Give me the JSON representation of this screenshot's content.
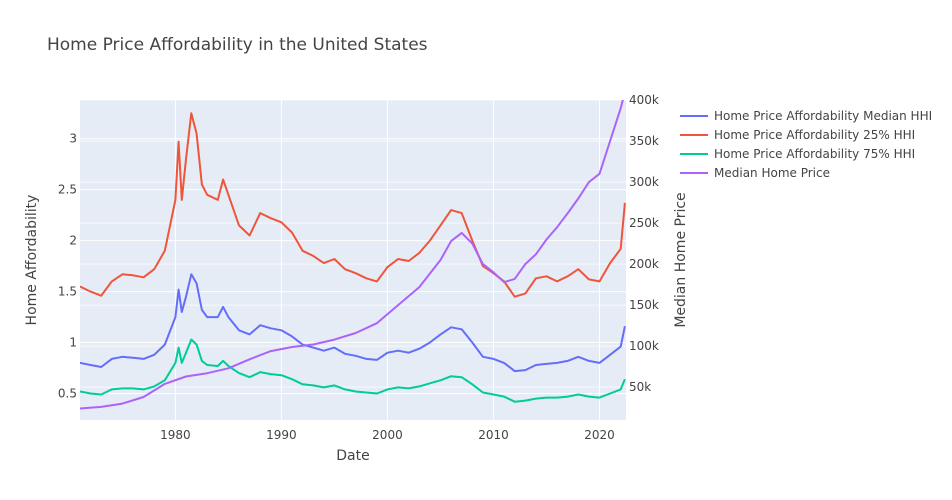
{
  "chart_data": {
    "type": "line",
    "title": "Home Price Affordability in the United States",
    "xlabel": "Date",
    "ylabel": "Home Affordability",
    "y2label": "Median Home Price",
    "xlim": [
      1971,
      2022.5
    ],
    "ylim": [
      0.24,
      3.38
    ],
    "y2lim": [
      10000,
      400000
    ],
    "x_ticks": [
      1980,
      1990,
      2000,
      2010,
      2020
    ],
    "y_ticks": [
      0.5,
      1,
      1.5,
      2,
      2.5,
      3
    ],
    "y_tick_labels": [
      "0.5",
      "1",
      "1.5",
      "2",
      "2.5",
      "3"
    ],
    "y2_ticks": [
      50000,
      100000,
      150000,
      200000,
      250000,
      300000,
      350000,
      400000
    ],
    "y2_tick_labels": [
      "50k",
      "100k",
      "150k",
      "200k",
      "250k",
      "300k",
      "350k",
      "400k"
    ],
    "grid": true,
    "legend_position": "top-right",
    "series": [
      {
        "name": "Home Price Affordability Median HHI",
        "color": "#636efa",
        "axis": "y",
        "points": [
          [
            1971,
            0.8
          ],
          [
            1972,
            0.78
          ],
          [
            1973,
            0.76
          ],
          [
            1974,
            0.84
          ],
          [
            1975,
            0.86
          ],
          [
            1976,
            0.85
          ],
          [
            1977,
            0.84
          ],
          [
            1978,
            0.88
          ],
          [
            1979,
            0.98
          ],
          [
            1980,
            1.25
          ],
          [
            1980.3,
            1.52
          ],
          [
            1980.6,
            1.3
          ],
          [
            1981,
            1.45
          ],
          [
            1981.5,
            1.67
          ],
          [
            1982,
            1.58
          ],
          [
            1982.5,
            1.32
          ],
          [
            1983,
            1.25
          ],
          [
            1984,
            1.25
          ],
          [
            1984.5,
            1.35
          ],
          [
            1985,
            1.25
          ],
          [
            1986,
            1.12
          ],
          [
            1987,
            1.08
          ],
          [
            1988,
            1.17
          ],
          [
            1989,
            1.14
          ],
          [
            1990,
            1.12
          ],
          [
            1991,
            1.06
          ],
          [
            1992,
            0.98
          ],
          [
            1993,
            0.95
          ],
          [
            1994,
            0.92
          ],
          [
            1995,
            0.95
          ],
          [
            1996,
            0.89
          ],
          [
            1997,
            0.87
          ],
          [
            1998,
            0.84
          ],
          [
            1999,
            0.83
          ],
          [
            2000,
            0.9
          ],
          [
            2001,
            0.92
          ],
          [
            2002,
            0.9
          ],
          [
            2003,
            0.94
          ],
          [
            2004,
            1.0
          ],
          [
            2005,
            1.08
          ],
          [
            2006,
            1.15
          ],
          [
            2007,
            1.13
          ],
          [
            2008,
            1.0
          ],
          [
            2009,
            0.86
          ],
          [
            2010,
            0.84
          ],
          [
            2011,
            0.8
          ],
          [
            2012,
            0.72
          ],
          [
            2013,
            0.73
          ],
          [
            2014,
            0.78
          ],
          [
            2015,
            0.79
          ],
          [
            2016,
            0.8
          ],
          [
            2017,
            0.82
          ],
          [
            2018,
            0.86
          ],
          [
            2019,
            0.82
          ],
          [
            2020,
            0.8
          ],
          [
            2021,
            0.88
          ],
          [
            2022,
            0.96
          ],
          [
            2022.4,
            1.16
          ]
        ]
      },
      {
        "name": "Home Price Affordability 25% HHI",
        "color": "#ef553b",
        "axis": "y",
        "points": [
          [
            1971,
            1.55
          ],
          [
            1972,
            1.5
          ],
          [
            1973,
            1.46
          ],
          [
            1974,
            1.6
          ],
          [
            1975,
            1.67
          ],
          [
            1976,
            1.66
          ],
          [
            1977,
            1.64
          ],
          [
            1978,
            1.72
          ],
          [
            1979,
            1.9
          ],
          [
            1980,
            2.4
          ],
          [
            1980.3,
            2.97
          ],
          [
            1980.6,
            2.4
          ],
          [
            1981,
            2.8
          ],
          [
            1981.5,
            3.25
          ],
          [
            1982,
            3.05
          ],
          [
            1982.5,
            2.55
          ],
          [
            1983,
            2.45
          ],
          [
            1984,
            2.4
          ],
          [
            1984.5,
            2.6
          ],
          [
            1985,
            2.45
          ],
          [
            1986,
            2.15
          ],
          [
            1987,
            2.05
          ],
          [
            1988,
            2.27
          ],
          [
            1989,
            2.22
          ],
          [
            1990,
            2.18
          ],
          [
            1991,
            2.08
          ],
          [
            1992,
            1.9
          ],
          [
            1993,
            1.85
          ],
          [
            1994,
            1.78
          ],
          [
            1995,
            1.82
          ],
          [
            1996,
            1.72
          ],
          [
            1997,
            1.68
          ],
          [
            1998,
            1.63
          ],
          [
            1999,
            1.6
          ],
          [
            2000,
            1.74
          ],
          [
            2001,
            1.82
          ],
          [
            2002,
            1.8
          ],
          [
            2003,
            1.88
          ],
          [
            2004,
            2.0
          ],
          [
            2005,
            2.15
          ],
          [
            2006,
            2.3
          ],
          [
            2007,
            2.27
          ],
          [
            2008,
            2.0
          ],
          [
            2009,
            1.75
          ],
          [
            2010,
            1.68
          ],
          [
            2011,
            1.6
          ],
          [
            2012,
            1.45
          ],
          [
            2013,
            1.48
          ],
          [
            2014,
            1.63
          ],
          [
            2015,
            1.65
          ],
          [
            2016,
            1.6
          ],
          [
            2017,
            1.65
          ],
          [
            2018,
            1.72
          ],
          [
            2019,
            1.62
          ],
          [
            2020,
            1.6
          ],
          [
            2021,
            1.78
          ],
          [
            2022,
            1.92
          ],
          [
            2022.4,
            2.37
          ]
        ]
      },
      {
        "name": "Home Price Affordability 75% HHI",
        "color": "#00cc96",
        "axis": "y",
        "points": [
          [
            1971,
            0.52
          ],
          [
            1972,
            0.5
          ],
          [
            1973,
            0.49
          ],
          [
            1974,
            0.54
          ],
          [
            1975,
            0.55
          ],
          [
            1976,
            0.55
          ],
          [
            1977,
            0.54
          ],
          [
            1978,
            0.57
          ],
          [
            1979,
            0.63
          ],
          [
            1980,
            0.8
          ],
          [
            1980.3,
            0.95
          ],
          [
            1980.6,
            0.8
          ],
          [
            1981,
            0.9
          ],
          [
            1981.5,
            1.03
          ],
          [
            1982,
            0.98
          ],
          [
            1982.5,
            0.82
          ],
          [
            1983,
            0.78
          ],
          [
            1984,
            0.77
          ],
          [
            1984.5,
            0.82
          ],
          [
            1985,
            0.77
          ],
          [
            1986,
            0.7
          ],
          [
            1987,
            0.66
          ],
          [
            1988,
            0.71
          ],
          [
            1989,
            0.69
          ],
          [
            1990,
            0.68
          ],
          [
            1991,
            0.64
          ],
          [
            1992,
            0.59
          ],
          [
            1993,
            0.58
          ],
          [
            1994,
            0.56
          ],
          [
            1995,
            0.58
          ],
          [
            1996,
            0.54
          ],
          [
            1997,
            0.52
          ],
          [
            1998,
            0.51
          ],
          [
            1999,
            0.5
          ],
          [
            2000,
            0.54
          ],
          [
            2001,
            0.56
          ],
          [
            2002,
            0.55
          ],
          [
            2003,
            0.57
          ],
          [
            2004,
            0.6
          ],
          [
            2005,
            0.63
          ],
          [
            2006,
            0.67
          ],
          [
            2007,
            0.66
          ],
          [
            2008,
            0.59
          ],
          [
            2009,
            0.51
          ],
          [
            2010,
            0.49
          ],
          [
            2011,
            0.47
          ],
          [
            2012,
            0.42
          ],
          [
            2013,
            0.43
          ],
          [
            2014,
            0.45
          ],
          [
            2015,
            0.46
          ],
          [
            2016,
            0.46
          ],
          [
            2017,
            0.47
          ],
          [
            2018,
            0.49
          ],
          [
            2019,
            0.47
          ],
          [
            2020,
            0.46
          ],
          [
            2021,
            0.5
          ],
          [
            2022,
            0.54
          ],
          [
            2022.4,
            0.64
          ]
        ]
      },
      {
        "name": "Median Home Price",
        "color": "#ab63fa",
        "axis": "y2",
        "points": [
          [
            1971,
            24000
          ],
          [
            1973,
            26000
          ],
          [
            1975,
            30000
          ],
          [
            1977,
            38000
          ],
          [
            1979,
            54000
          ],
          [
            1981,
            63000
          ],
          [
            1983,
            67000
          ],
          [
            1985,
            73000
          ],
          [
            1987,
            84000
          ],
          [
            1989,
            94000
          ],
          [
            1991,
            99000
          ],
          [
            1993,
            102000
          ],
          [
            1995,
            108000
          ],
          [
            1997,
            116000
          ],
          [
            1999,
            128000
          ],
          [
            2001,
            150000
          ],
          [
            2003,
            172000
          ],
          [
            2005,
            205000
          ],
          [
            2006,
            228000
          ],
          [
            2007,
            238000
          ],
          [
            2008,
            225000
          ],
          [
            2009,
            200000
          ],
          [
            2010,
            190000
          ],
          [
            2011,
            178000
          ],
          [
            2012,
            182000
          ],
          [
            2013,
            200000
          ],
          [
            2014,
            212000
          ],
          [
            2015,
            230000
          ],
          [
            2016,
            245000
          ],
          [
            2017,
            262000
          ],
          [
            2018,
            280000
          ],
          [
            2019,
            300000
          ],
          [
            2020,
            310000
          ],
          [
            2021,
            350000
          ],
          [
            2022,
            390000
          ],
          [
            2022.4,
            410000
          ]
        ]
      }
    ]
  }
}
